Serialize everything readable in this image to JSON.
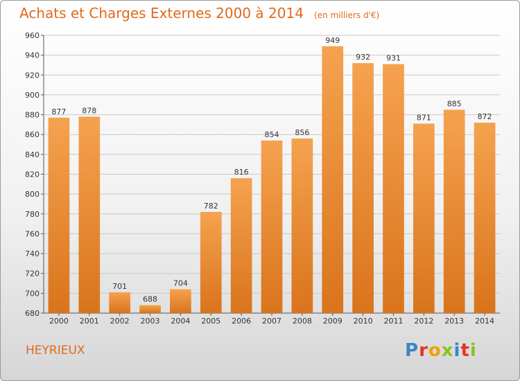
{
  "header": {
    "title": "Achats et Charges Externes 2000 à 2014",
    "subtitle": "(en milliers d'€)"
  },
  "commune": "HEYRIEUX",
  "logo": {
    "letters": [
      "P",
      "r",
      "o",
      "x",
      "i",
      "t",
      "i"
    ],
    "colors": [
      "#3a86c8",
      "#e8332a",
      "#f2a100",
      "#8dc21f",
      "#3a86c8",
      "#e8332a",
      "#8dc21f"
    ]
  },
  "colors": {
    "accent": "#e06a1b",
    "bar_top": "#f5a24f",
    "bar_bottom": "#d9741c",
    "grid": "#c8c8c8"
  },
  "chart_data": {
    "type": "bar",
    "title": "Achats et Charges Externes 2000 à 2014",
    "subtitle": "(en milliers d'€)",
    "categories": [
      "2000",
      "2001",
      "2002",
      "2003",
      "2004",
      "2005",
      "2006",
      "2007",
      "2008",
      "2009",
      "2010",
      "2011",
      "2012",
      "2013",
      "2014"
    ],
    "values": [
      877,
      878,
      701,
      688,
      704,
      782,
      816,
      854,
      856,
      949,
      932,
      931,
      871,
      885,
      872
    ],
    "ylim": [
      680,
      960
    ],
    "yticks": [
      680,
      700,
      720,
      740,
      760,
      780,
      800,
      820,
      840,
      860,
      880,
      900,
      920,
      940,
      960
    ],
    "grid": true
  }
}
